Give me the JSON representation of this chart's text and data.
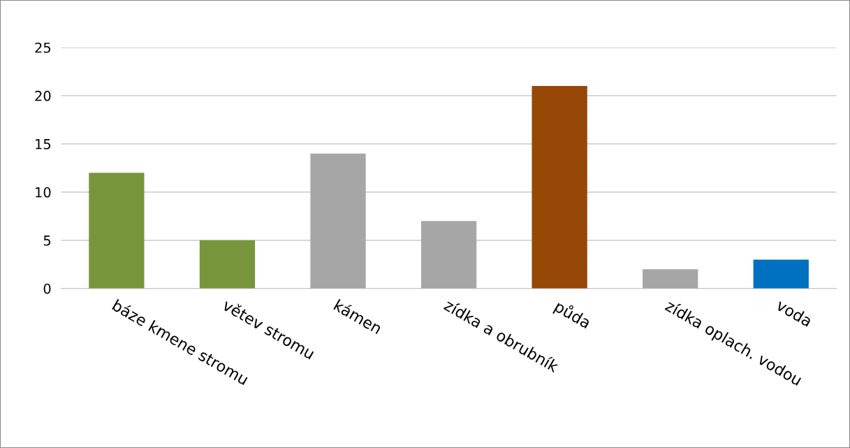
{
  "chart_data": {
    "type": "bar",
    "categories": [
      "báze kmene stromu",
      "větev stromu",
      "kámen",
      "zídka a obrubník",
      "půda",
      "zídka oplach. vodou",
      "voda"
    ],
    "values": [
      12,
      5,
      14,
      7,
      21,
      2,
      3
    ],
    "colors": [
      "#77963b",
      "#77963b",
      "#a6a6a6",
      "#a6a6a6",
      "#974706",
      "#a6a6a6",
      "#0070c0"
    ],
    "ylim": [
      0,
      25
    ],
    "yticks": [
      0,
      5,
      10,
      15,
      20,
      25
    ],
    "grid": "y"
  }
}
